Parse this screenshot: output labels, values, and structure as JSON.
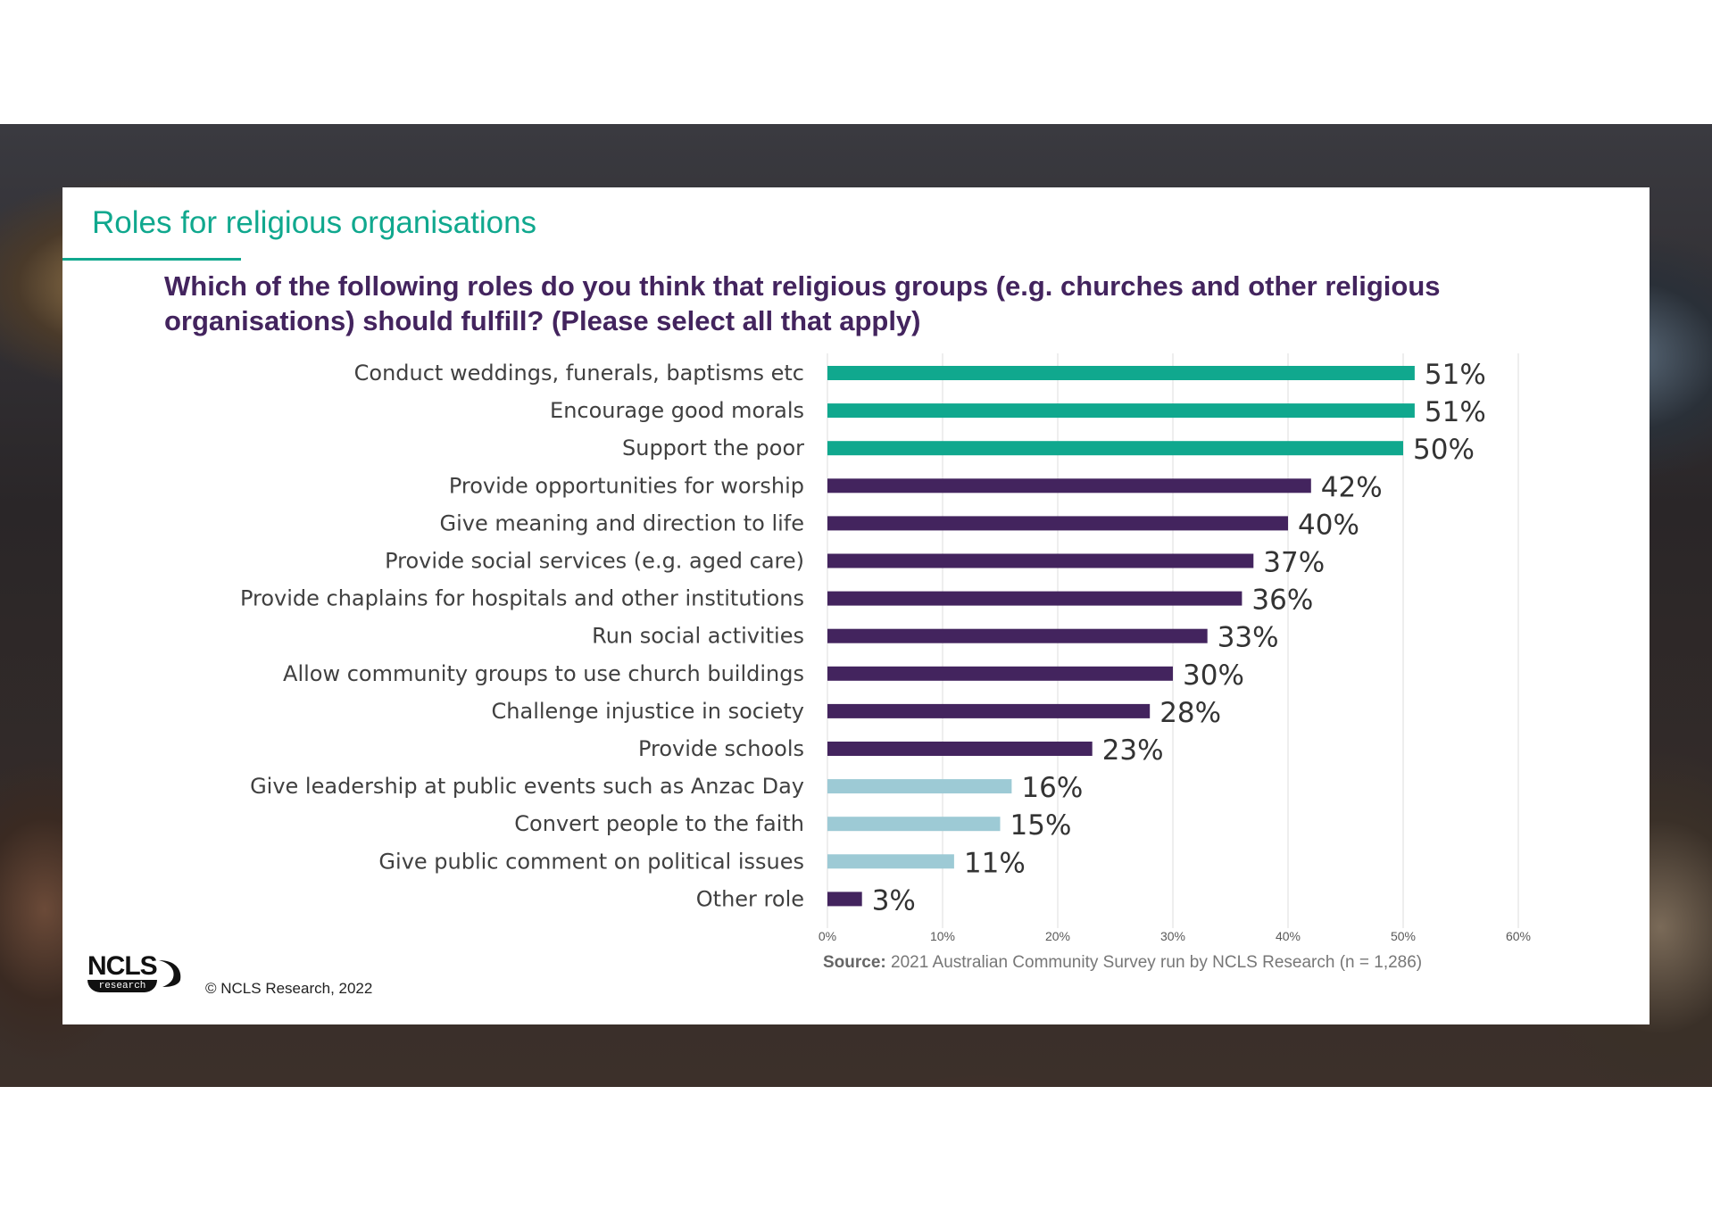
{
  "header": {
    "title": "Roles for religious organisations",
    "question": "Which of the following roles do you think that religious groups (e.g. churches and other religious organisations) should fulfill? (Please select all that apply)"
  },
  "footer": {
    "logo_text": "NCLS",
    "logo_subtext": "research",
    "copyright": "© NCLS Research, 2022",
    "source_label": "Source:",
    "source_text": " 2021 Australian Community Survey run by NCLS Research (n = 1,286)"
  },
  "colors": {
    "teal": "#10a88e",
    "purple": "#43245e",
    "light_blue": "#9dcad5",
    "background_photo": "crowd"
  },
  "chart_data": {
    "type": "bar",
    "orientation": "horizontal",
    "title": "",
    "xlabel": "",
    "ylabel": "",
    "categories": [
      "Conduct weddings, funerals, baptisms etc",
      "Encourage good morals",
      "Support the poor",
      "Provide opportunities for worship",
      "Give meaning and direction to life",
      "Provide social services (e.g. aged care)",
      "Provide chaplains for hospitals and other institutions",
      "Run social activities",
      "Allow community groups to use church buildings",
      "Challenge injustice in society",
      "Provide schools",
      "Give leadership at public events such as Anzac Day",
      "Convert people to the faith",
      "Give public comment on political issues",
      "Other role"
    ],
    "values": [
      51,
      51,
      50,
      42,
      40,
      37,
      36,
      33,
      30,
      28,
      23,
      16,
      15,
      11,
      3
    ],
    "value_labels": [
      "51%",
      "51%",
      "50%",
      "42%",
      "40%",
      "37%",
      "36%",
      "33%",
      "30%",
      "28%",
      "23%",
      "16%",
      "15%",
      "11%",
      "3%"
    ],
    "bar_colors": [
      "#10a88e",
      "#10a88e",
      "#10a88e",
      "#43245e",
      "#43245e",
      "#43245e",
      "#43245e",
      "#43245e",
      "#43245e",
      "#43245e",
      "#43245e",
      "#9dcad5",
      "#9dcad5",
      "#9dcad5",
      "#43245e"
    ],
    "xlim": [
      0,
      60
    ],
    "x_ticks": [
      0,
      10,
      20,
      30,
      40,
      50,
      60
    ],
    "x_tick_labels": [
      "0%",
      "10%",
      "20%",
      "30%",
      "40%",
      "50%",
      "60%"
    ],
    "grid": "vertical",
    "legend": "none"
  }
}
